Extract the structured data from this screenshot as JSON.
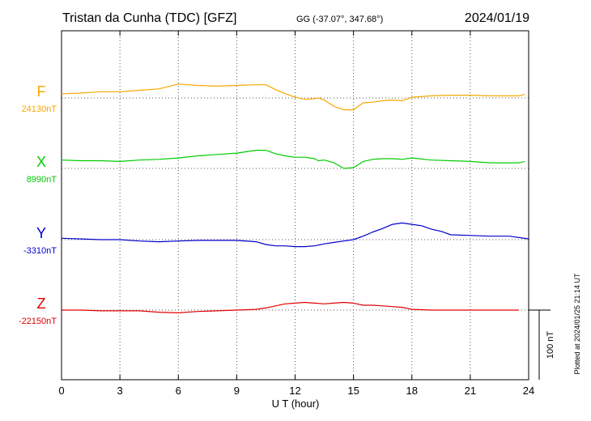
{
  "header": {
    "title": "Tristan da Cunha (TDC)  [GFZ]",
    "coords": "GG (-37.07°, 347.68°)",
    "date": "2024/01/19"
  },
  "side_note": "Plotted at 2024/01/25 21:14 UT",
  "scale_label": "100 nT",
  "colors": {
    "F": "#f5a800",
    "X": "#00cc00",
    "Y": "#0000cc",
    "Z": "#e00000"
  },
  "chart_data": {
    "type": "line",
    "xlabel": "U T (hour)",
    "xlim": [
      0,
      24
    ],
    "xticks": [
      0,
      3,
      6,
      9,
      12,
      15,
      18,
      21,
      24
    ],
    "y_scale_bar_nT": 100,
    "series": [
      {
        "name": "F",
        "baseline_label": "24130nT",
        "baseline_nT": 24130,
        "x": [
          0,
          1,
          2,
          3,
          4,
          5,
          6,
          7,
          8,
          9,
          10,
          10.5,
          11,
          11.5,
          12,
          12.5,
          13,
          13.2,
          13.5,
          14,
          14.5,
          15,
          15.5,
          16,
          16.5,
          17,
          17.5,
          18,
          19,
          20,
          21,
          22,
          23,
          23.5,
          23.8
        ],
        "values": [
          24136,
          24137,
          24139,
          24139,
          24141,
          24143,
          24150,
          24148,
          24147,
          24148,
          24149,
          24149,
          24142,
          24136,
          24131,
          24128,
          24129,
          24130,
          24127,
          24118,
          24113,
          24113,
          24123,
          24124,
          24126,
          24127,
          24126,
          24131,
          24133,
          24134,
          24134,
          24133,
          24133,
          24133,
          24135
        ]
      },
      {
        "name": "X",
        "baseline_label": "8990nT",
        "baseline_nT": 8990,
        "x": [
          0,
          1,
          2,
          3,
          4,
          5,
          6,
          7,
          8,
          9,
          10,
          10.5,
          11,
          11.5,
          12,
          12.5,
          13,
          13.2,
          13.5,
          14,
          14.5,
          15,
          15.5,
          16,
          16.5,
          17,
          17.5,
          18,
          19,
          20,
          21,
          22,
          23,
          23.5,
          23.8
        ],
        "values": [
          9002,
          9001,
          9001,
          9000,
          9002,
          9003,
          9005,
          9008,
          9010,
          9012,
          9016,
          9016,
          9011,
          9008,
          9006,
          9006,
          9004,
          9001,
          9002,
          8998,
          8990,
          8991,
          9000,
          9003,
          9004,
          9004,
          9003,
          9005,
          9002,
          9001,
          9000,
          8998,
          8998,
          8998,
          9000
        ]
      },
      {
        "name": "Y",
        "baseline_label": "-3310nT",
        "baseline_nT": -3310,
        "x": [
          0,
          1,
          2,
          3,
          4,
          5,
          6,
          7,
          8,
          9,
          10,
          10.5,
          11,
          11.5,
          12,
          12.5,
          13,
          13.5,
          14,
          14.5,
          15,
          15.5,
          16,
          16.5,
          17,
          17.5,
          18,
          18.5,
          19,
          19.5,
          20,
          21,
          22,
          23,
          23.5,
          24
        ],
        "values": [
          -3308,
          -3309,
          -3310,
          -3310,
          -3312,
          -3313,
          -3312,
          -3311,
          -3311,
          -3311,
          -3313,
          -3317,
          -3319,
          -3319,
          -3320,
          -3320,
          -3319,
          -3316,
          -3314,
          -3312,
          -3310,
          -3305,
          -3299,
          -3294,
          -3288,
          -3286,
          -3288,
          -3290,
          -3295,
          -3298,
          -3303,
          -3304,
          -3305,
          -3305,
          -3307,
          -3309
        ]
      },
      {
        "name": "Z",
        "baseline_label": "-22150nT",
        "baseline_nT": -22150,
        "x": [
          0,
          1,
          2,
          3,
          4,
          5,
          6,
          7,
          8,
          9,
          10,
          10.5,
          11,
          11.5,
          12,
          12.5,
          13,
          13.5,
          14,
          14.5,
          15,
          15.5,
          16,
          16.5,
          17,
          17.5,
          18,
          19,
          20,
          21,
          22,
          23,
          23.5
        ],
        "values": [
          -22150,
          -22150,
          -22151,
          -22151,
          -22151,
          -22153,
          -22154,
          -22152,
          -22151,
          -22150,
          -22149,
          -22147,
          -22144,
          -22141,
          -22140,
          -22139,
          -22140,
          -22141,
          -22140,
          -22139,
          -22140,
          -22143,
          -22143,
          -22144,
          -22145,
          -22146,
          -22149,
          -22150,
          -22150,
          -22150,
          -22150,
          -22150,
          -22150
        ]
      }
    ]
  }
}
